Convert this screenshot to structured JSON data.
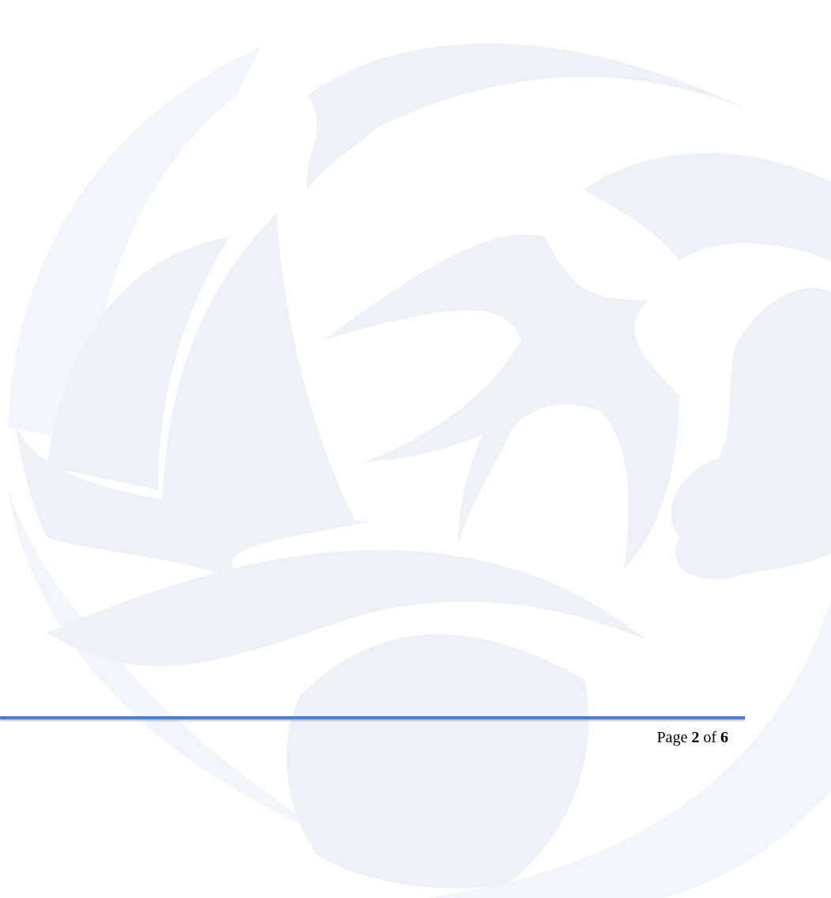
{
  "footer": {
    "prefix": "Page",
    "current_page": "2",
    "separator": "of",
    "total_pages": "6"
  }
}
